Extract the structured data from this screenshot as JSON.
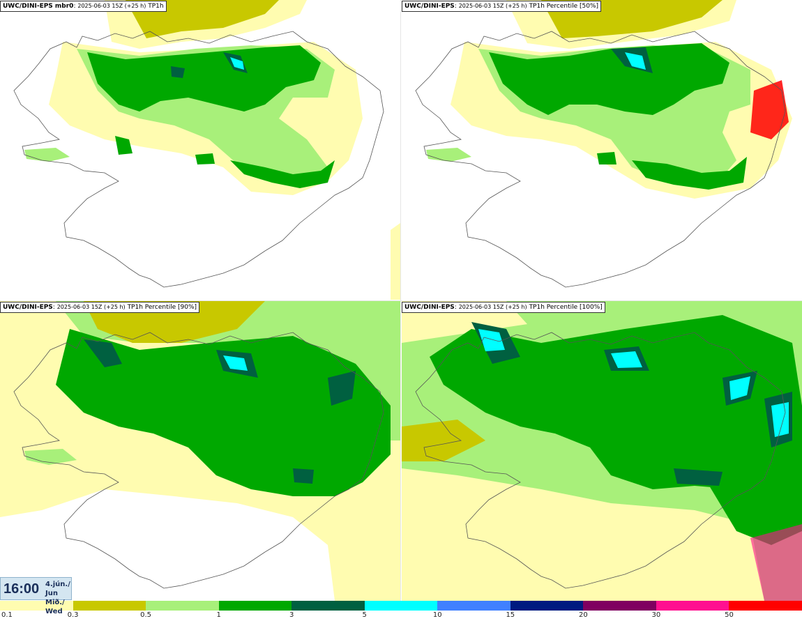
{
  "panels": [
    {
      "model": "UWC/DINI-EPS mbr0",
      "run": "2025-06-03 15Z (+25 h)",
      "field": "TP1h"
    },
    {
      "model": "UWC/DINI-EPS",
      "run": "2025-06-03 15Z (+25 h)",
      "field": "TP1h Percentile [50%]"
    },
    {
      "model": "UWC/DINI-EPS",
      "run": "2025-06-03 15Z (+25 h)",
      "field": "TP1h Percentile [90%]"
    },
    {
      "model": "UWC/DINI-EPS",
      "run": "2025-06-03 15Z (+25 h)",
      "field": "TP1h Percentile [100%]"
    }
  ],
  "valid_time": {
    "time": "16:00",
    "date_line1": "4.jún./ Jun",
    "date_line2": "Mið./ Wed"
  },
  "colorbar": {
    "labels": [
      "0.1",
      "0.3",
      "0.5",
      "1",
      "3",
      "5",
      "10",
      "15",
      "20",
      "30",
      "50"
    ],
    "colors": [
      "#fffcb0",
      "#c8c800",
      "#a8f07a",
      "#00a800",
      "#006040",
      "#00ffff",
      "#4080ff",
      "#001a80",
      "#800060",
      "#ff1090",
      "#ff0000"
    ]
  }
}
